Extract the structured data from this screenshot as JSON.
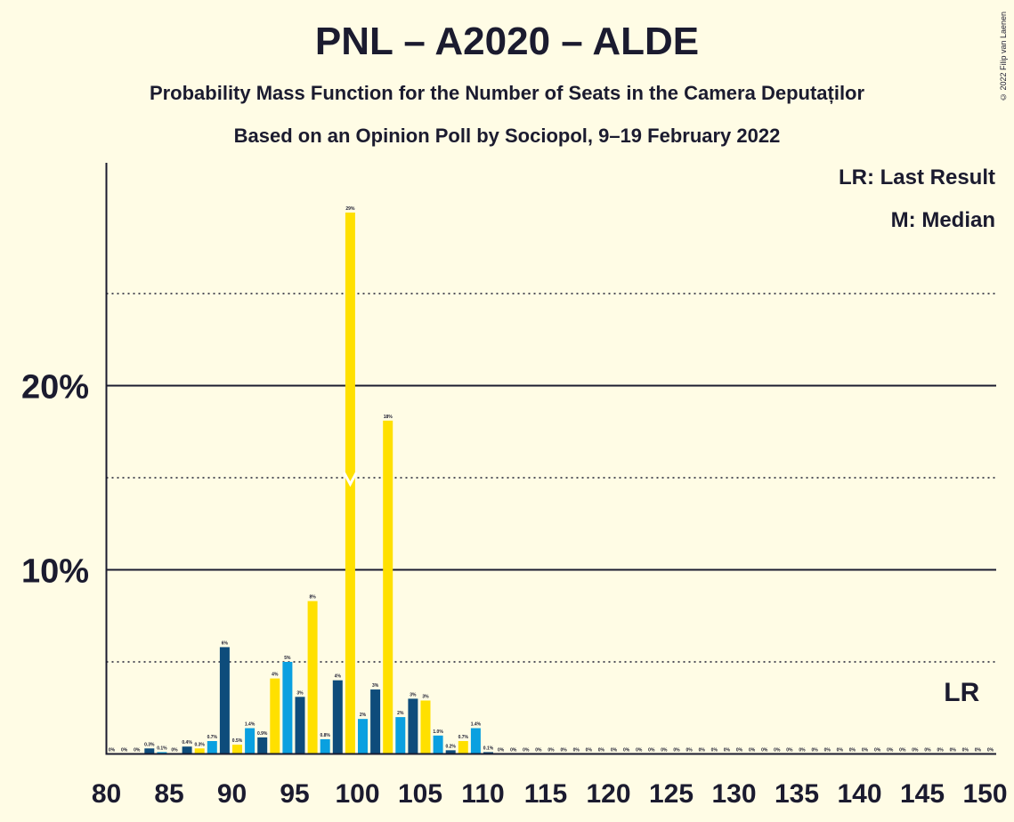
{
  "title": "PNL – A2020 – ALDE",
  "subtitle_line1": "Probability Mass Function for the Number of Seats in the Camera Deputaților",
  "subtitle_line2": "Based on an Opinion Poll by Sociopol, 9–19 February 2022",
  "copyright": "© 2022 Filip van Laenen",
  "legend": {
    "last_result": "LR: Last Result",
    "median": "M: Median"
  },
  "colors": {
    "background": "#FFFCE5",
    "dark_blue": "#0E4C7B",
    "light_blue": "#0AA0E0",
    "yellow": "#FFE000",
    "text": "#1B1B2F"
  },
  "chart_data": {
    "type": "bar",
    "x": [
      80,
      81,
      82,
      83,
      84,
      85,
      86,
      87,
      88,
      89,
      90,
      91,
      92,
      93,
      94,
      95,
      96,
      97,
      98,
      99,
      100,
      101,
      102,
      103,
      104,
      105,
      106,
      107,
      108,
      109,
      110,
      111,
      112,
      113,
      114,
      115,
      116,
      117,
      118,
      119,
      120,
      121,
      122,
      123,
      124,
      125,
      126,
      127,
      128,
      129,
      130,
      131,
      132,
      133,
      134,
      135,
      136,
      137,
      138,
      139,
      140,
      141,
      142,
      143,
      144,
      145,
      146,
      147,
      148,
      149,
      150
    ],
    "values": [
      0,
      0,
      0,
      0.3,
      0.1,
      0,
      0.4,
      0.3,
      0.7,
      5.8,
      0.5,
      1.4,
      0.9,
      4.1,
      5.0,
      3.1,
      8.3,
      0.8,
      4.0,
      29.4,
      1.9,
      3.5,
      18.1,
      2.0,
      3.0,
      2.9,
      1.0,
      0.2,
      0.7,
      1.4,
      0.1,
      0,
      0,
      0,
      0,
      0,
      0,
      0,
      0,
      0,
      0,
      0,
      0,
      0,
      0,
      0,
      0,
      0,
      0,
      0,
      0,
      0,
      0,
      0,
      0,
      0,
      0,
      0,
      0,
      0,
      0,
      0,
      0,
      0,
      0,
      0,
      0,
      0,
      0,
      0,
      0
    ],
    "labels": [
      "0%",
      "0%",
      "0%",
      "0.3%",
      "0.1%",
      "0%",
      "0.4%",
      "0.3%",
      "0.7%",
      "6%",
      "0.5%",
      "1.4%",
      "0.9%",
      "4%",
      "5%",
      "3%",
      "8%",
      "0.8%",
      "4%",
      "29%",
      "2%",
      "3%",
      "18%",
      "2%",
      "3%",
      "3%",
      "1.0%",
      "0.2%",
      "0.7%",
      "1.4%",
      "0.1%",
      "0%",
      "0%",
      "0%",
      "0%",
      "0%",
      "0%",
      "0%",
      "0%",
      "0%",
      "0%",
      "0%",
      "0%",
      "0%",
      "0%",
      "0%",
      "0%",
      "0%",
      "0%",
      "0%",
      "0%",
      "0%",
      "0%",
      "0%",
      "0%",
      "0%",
      "0%",
      "0%",
      "0%",
      "0%",
      "0%",
      "0%",
      "0%",
      "0%",
      "0%",
      "0%",
      "0%",
      "0%",
      "0%",
      "0%",
      "0%"
    ],
    "bar_colors": [
      "#0AA0E0",
      "#FFE000",
      "#0E4C7B",
      "#0E4C7B",
      "#0AA0E0",
      "#FFE000",
      "#0E4C7B",
      "#FFE000",
      "#0AA0E0",
      "#0E4C7B",
      "#FFE000",
      "#0AA0E0",
      "#0E4C7B",
      "#FFE000",
      "#0AA0E0",
      "#0E4C7B",
      "#FFE000",
      "#0AA0E0",
      "#0E4C7B",
      "#FFE000",
      "#0AA0E0",
      "#0E4C7B",
      "#FFE000",
      "#0AA0E0",
      "#0E4C7B",
      "#FFE000",
      "#0AA0E0",
      "#0E4C7B",
      "#FFE000",
      "#0AA0E0",
      "#0E4C7B",
      "#FFE000",
      "#0AA0E0",
      "#0E4C7B",
      "#FFE000",
      "#0AA0E0",
      "#0E4C7B",
      "#FFE000",
      "#0AA0E0",
      "#0E4C7B",
      "#FFE000",
      "#0AA0E0",
      "#0E4C7B",
      "#FFE000",
      "#0AA0E0",
      "#0E4C7B",
      "#FFE000",
      "#0AA0E0",
      "#0E4C7B",
      "#FFE000",
      "#0AA0E0",
      "#0E4C7B",
      "#FFE000",
      "#0AA0E0",
      "#0E4C7B",
      "#FFE000",
      "#0AA0E0",
      "#0E4C7B",
      "#FFE000",
      "#0AA0E0",
      "#0E4C7B",
      "#FFE000",
      "#0AA0E0",
      "#0E4C7B",
      "#FFE000",
      "#0AA0E0",
      "#0E4C7B",
      "#FFE000",
      "#0AA0E0",
      "#0E4C7B",
      "#FFE000"
    ],
    "x_ticks": [
      "80",
      "85",
      "90",
      "95",
      "100",
      "105",
      "110",
      "115",
      "120",
      "125",
      "130",
      "135",
      "140",
      "145",
      "150"
    ],
    "y_ticks": [
      "10%",
      "20%"
    ],
    "ylim": [
      0,
      30
    ],
    "solid_gridlines": [
      10,
      20
    ],
    "dotted_gridlines": [
      5,
      15,
      25
    ],
    "median": {
      "seat": 99,
      "label": "M"
    },
    "last_result": {
      "seat": 148,
      "label": "LR"
    }
  }
}
